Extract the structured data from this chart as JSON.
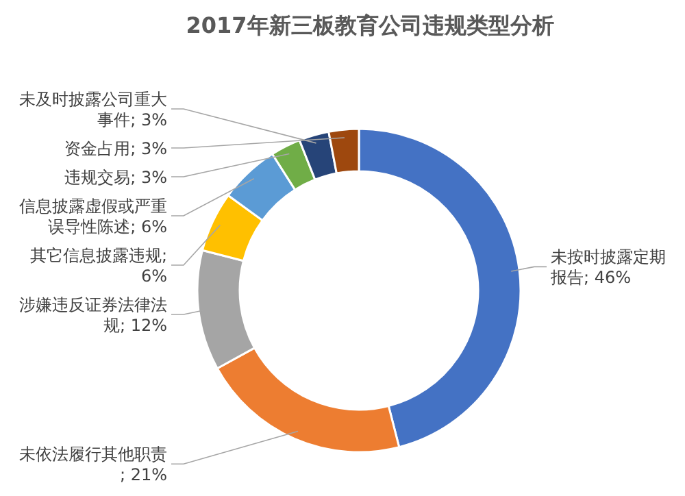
{
  "chart_data": {
    "type": "donut",
    "title": "2017年新三板教育公司违规类型分析",
    "categories": [
      "未按时披露定期报告; 46%",
      "未依法履行其他职责; 21%",
      "涉嫌违反证券法律法规; 12%",
      "其它信息披露违规; 6%",
      "信息披露虚假或严重误导性陈述; 6%",
      "违规交易; 3%",
      "未及时披露公司重大事件; 3%",
      "资金占用; 3%"
    ],
    "values": [
      46,
      21,
      12,
      6,
      6,
      3,
      3,
      3
    ],
    "colors": [
      "#4472c4",
      "#ed7d31",
      "#a5a5a5",
      "#ffc000",
      "#5b9bd5",
      "#70ad47",
      "#264478",
      "#9e480e"
    ]
  }
}
